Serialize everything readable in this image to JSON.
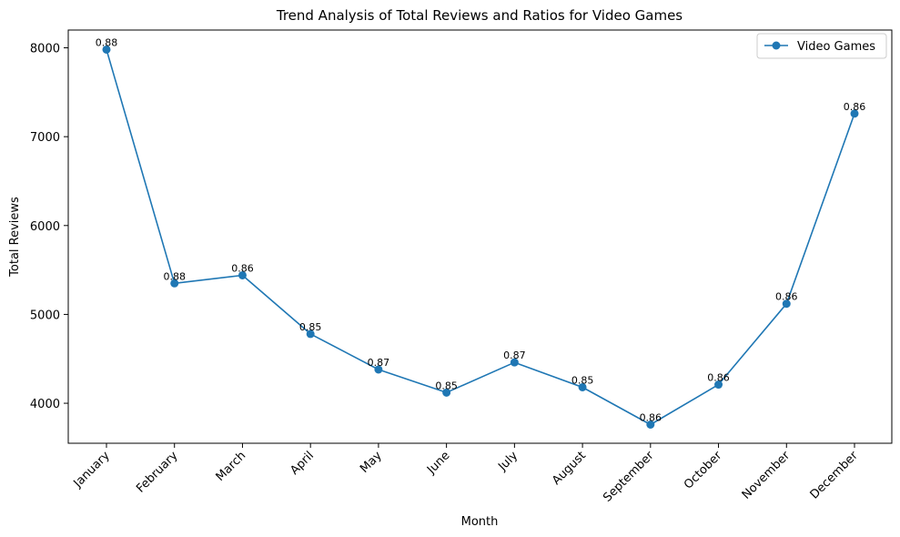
{
  "chart_data": {
    "type": "line",
    "title": "Trend Analysis of Total Reviews and Ratios for Video Games",
    "xlabel": "Month",
    "ylabel": "Total Reviews",
    "categories": [
      "January",
      "February",
      "March",
      "April",
      "May",
      "June",
      "July",
      "August",
      "September",
      "October",
      "November",
      "December"
    ],
    "series": [
      {
        "name": "Video Games",
        "values": [
          7980,
          5350,
          5440,
          4780,
          4380,
          4120,
          4460,
          4180,
          3760,
          4210,
          5120,
          7260
        ],
        "labels": [
          "0.88",
          "0.88",
          "0.86",
          "0.85",
          "0.87",
          "0.85",
          "0.87",
          "0.85",
          "0.86",
          "0.86",
          "0.86",
          "0.86"
        ],
        "color": "#1f77b4"
      }
    ],
    "ylim": [
      3550,
      8200
    ],
    "yticks": [
      4000,
      5000,
      6000,
      7000,
      8000
    ],
    "grid": false,
    "legend_position": "top-right"
  }
}
